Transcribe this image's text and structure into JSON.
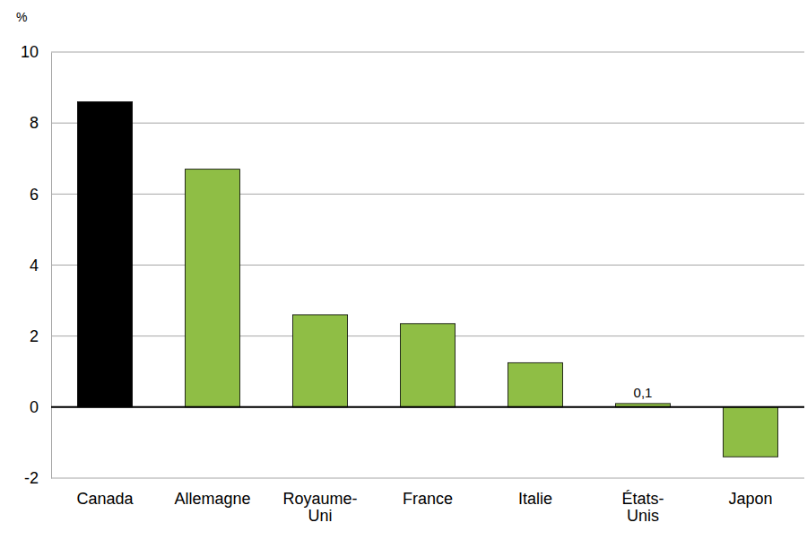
{
  "chart_data": {
    "type": "bar",
    "ylabel": "%",
    "categories": [
      "Canada",
      "Allemagne",
      "Royaume-Uni",
      "France",
      "Italie",
      "États-Unis",
      "Japon"
    ],
    "values": [
      8.6,
      6.7,
      2.6,
      2.35,
      1.25,
      0.1,
      -1.4
    ],
    "value_labels": [
      null,
      null,
      null,
      null,
      null,
      "0,1",
      null
    ],
    "data_labels": true,
    "colors": [
      "#000000",
      "#8fbe45",
      "#8fbe45",
      "#8fbe45",
      "#8fbe45",
      "#8fbe45",
      "#8fbe45"
    ],
    "ylim": [
      -2,
      10
    ],
    "yticks": [
      -2,
      0,
      2,
      4,
      6,
      8,
      10
    ],
    "grid": true
  }
}
